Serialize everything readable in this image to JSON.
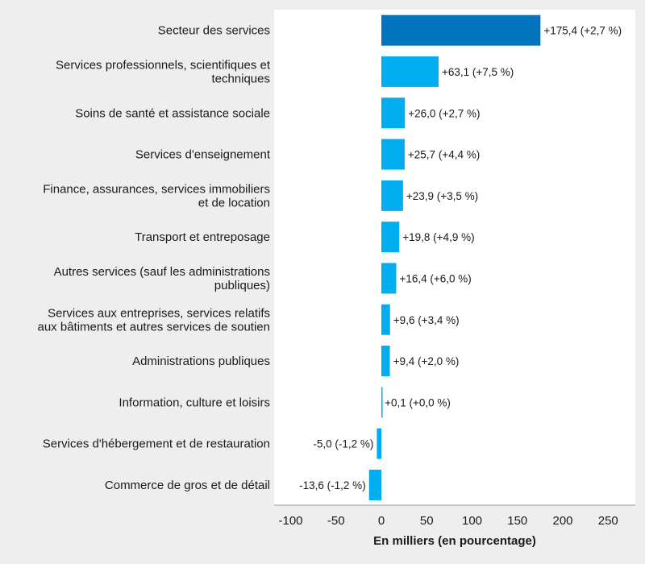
{
  "chart_data": {
    "type": "bar",
    "orientation": "horizontal",
    "categories": [
      [
        "Secteur des services"
      ],
      [
        "Services professionnels, scientifiques et",
        "techniques"
      ],
      [
        "Soins de santé et assistance sociale"
      ],
      [
        "Services d'enseignement"
      ],
      [
        "Finance, assurances, services immobiliers",
        "et de location"
      ],
      [
        "Transport et entreposage"
      ],
      [
        "Autres services (sauf les administrations",
        "publiques)"
      ],
      [
        "Services aux entreprises, services relatifs",
        "aux bâtiments et autres services de soutien"
      ],
      [
        "Administrations publiques"
      ],
      [
        "Information, culture et loisirs"
      ],
      [
        "Services d'hébergement et de restauration"
      ],
      [
        "Commerce de gros et de détail"
      ]
    ],
    "values": [
      175.4,
      63.1,
      26.0,
      25.7,
      23.9,
      19.8,
      16.4,
      9.6,
      9.4,
      0.1,
      -5.0,
      -13.6
    ],
    "value_labels": [
      "+175,4 (+2,7 %)",
      "+63,1 (+7,5 %)",
      "+26,0 (+2,7 %)",
      "+25,7 (+4,4 %)",
      "+23,9 (+3,5 %)",
      "+19,8 (+4,9 %)",
      "+16,4 (+6,0 %)",
      "+9,6 (+3,4 %)",
      "+9,4 (+2,0 %)",
      "+0,1 (+0,0 %)",
      "-5,0 (-1,2 %)",
      "-13,6 (-1,2 %)"
    ],
    "xlabel": "En milliers (en pourcentage)",
    "xlim": [
      -115,
      280
    ],
    "xticks": [
      -100,
      -50,
      0,
      50,
      100,
      150,
      200,
      250
    ],
    "xtick_labels": [
      "-100",
      "-50",
      "0",
      "50",
      "100",
      "150",
      "200",
      "250"
    ],
    "grid": false,
    "colors": {
      "highlight": "#0273bd",
      "default": "#00aeef",
      "axis": "#9e9e9e",
      "panel": "#ffffff",
      "outer": "#eeeeee"
    },
    "highlight_index": 0
  }
}
